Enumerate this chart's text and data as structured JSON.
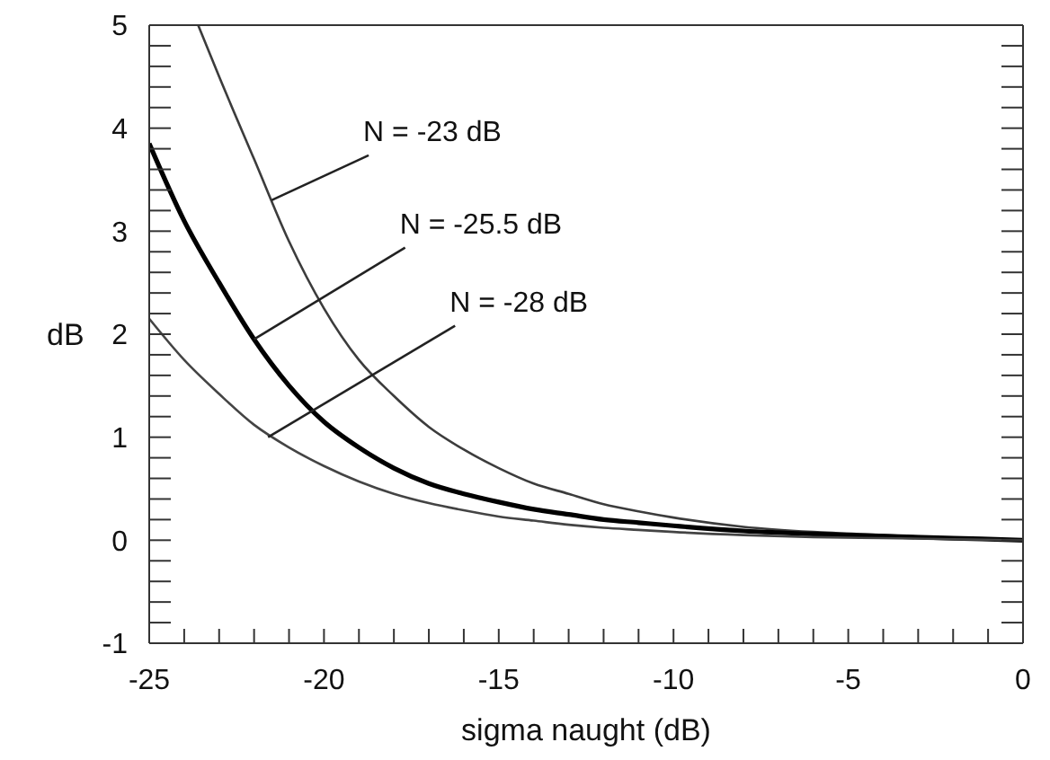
{
  "chart_data": {
    "type": "line",
    "xlabel": "sigma naught (dB)",
    "ylabel": "dB",
    "xlim": [
      -25,
      0
    ],
    "ylim": [
      -1,
      5
    ],
    "xticks": [
      -25,
      {
        "value": -24,
        "label": null
      },
      {
        "value": -23,
        "label": null
      },
      {
        "value": -22,
        "label": null
      },
      {
        "value": -21,
        "label": null
      },
      -20,
      {
        "value": -19,
        "label": null
      },
      {
        "value": -18,
        "label": null
      },
      {
        "value": -17,
        "label": null
      },
      {
        "value": -16,
        "label": null
      },
      -15,
      {
        "value": -14,
        "label": null
      },
      {
        "value": -13,
        "label": null
      },
      {
        "value": -12,
        "label": null
      },
      {
        "value": -11,
        "label": null
      },
      -10,
      {
        "value": -9,
        "label": null
      },
      {
        "value": -8,
        "label": null
      },
      {
        "value": -7,
        "label": null
      },
      {
        "value": -6,
        "label": null
      },
      -5,
      {
        "value": -4,
        "label": null
      },
      {
        "value": -3,
        "label": null
      },
      {
        "value": -2,
        "label": null
      },
      {
        "value": -1,
        "label": null
      },
      0
    ],
    "yticks": [
      -1,
      {
        "value": -0.8,
        "label": null
      },
      {
        "value": -0.6,
        "label": null
      },
      {
        "value": -0.4,
        "label": null
      },
      {
        "value": -0.2,
        "label": null
      },
      0,
      {
        "value": 0.2,
        "label": null
      },
      {
        "value": 0.4,
        "label": null
      },
      {
        "value": 0.6,
        "label": null
      },
      {
        "value": 0.8,
        "label": null
      },
      1,
      {
        "value": 1.2,
        "label": null
      },
      {
        "value": 1.4,
        "label": null
      },
      {
        "value": 1.6,
        "label": null
      },
      {
        "value": 1.8,
        "label": null
      },
      2,
      {
        "value": 2.2,
        "label": null
      },
      {
        "value": 2.4,
        "label": null
      },
      {
        "value": 2.6,
        "label": null
      },
      {
        "value": 2.8,
        "label": null
      },
      3,
      {
        "value": 3.2,
        "label": null
      },
      {
        "value": 3.4,
        "label": null
      },
      {
        "value": 3.6,
        "label": null
      },
      {
        "value": 3.8,
        "label": null
      },
      4,
      {
        "value": 4.2,
        "label": null
      },
      {
        "value": 4.4,
        "label": null
      },
      {
        "value": 4.6,
        "label": null
      },
      {
        "value": 4.8,
        "label": null
      },
      5
    ],
    "grid": false,
    "marker": "none",
    "line_style": "solid",
    "series": [
      {
        "color": "#3c3c3c",
        "x": [
          -23.6,
          -23,
          -22,
          -21,
          -20,
          -19,
          -18,
          -17,
          -16,
          -15,
          -14,
          -13,
          -12,
          -11,
          -10,
          -8,
          -6,
          -4,
          -2,
          0
        ],
        "values": [
          5,
          4.5,
          3.7,
          2.9,
          2.25,
          1.75,
          1.4,
          1.1,
          0.88,
          0.7,
          0.55,
          0.45,
          0.35,
          0.28,
          0.22,
          0.13,
          0.08,
          0.05,
          0.02,
          0
        ]
      },
      {
        "color": "#000000",
        "x": [
          -25,
          -24,
          -23,
          -22,
          -21,
          -20,
          -19,
          -18,
          -17,
          -16,
          -15,
          -14,
          -13,
          -12,
          -11,
          -10,
          -8,
          -6,
          -4,
          -2,
          0
        ],
        "values": [
          3.85,
          3.1,
          2.5,
          1.95,
          1.5,
          1.15,
          0.9,
          0.7,
          0.55,
          0.45,
          0.37,
          0.3,
          0.25,
          0.2,
          0.17,
          0.14,
          0.09,
          0.06,
          0.04,
          0.02,
          0
        ]
      },
      {
        "color": "#444444",
        "x": [
          -25,
          -24,
          -23,
          -22,
          -21,
          -20,
          -19,
          -18,
          -17,
          -16,
          -15,
          -14,
          -13,
          -12,
          -11,
          -10,
          -8,
          -6,
          -4,
          -2,
          0
        ],
        "values": [
          2.15,
          1.75,
          1.42,
          1.12,
          0.9,
          0.72,
          0.57,
          0.45,
          0.36,
          0.29,
          0.23,
          0.19,
          0.15,
          0.12,
          0.1,
          0.08,
          0.05,
          0.03,
          0.02,
          0.01,
          0
        ]
      }
    ],
    "annotations": [
      {
        "text": "N = -23 dB",
        "x": -21.5,
        "y": 3.3
      },
      {
        "text": "N = -25.5 dB",
        "x": -22,
        "y": 1.95
      },
      {
        "text": "N = -28 dB",
        "x": -21.6,
        "y": 1.0
      }
    ]
  }
}
